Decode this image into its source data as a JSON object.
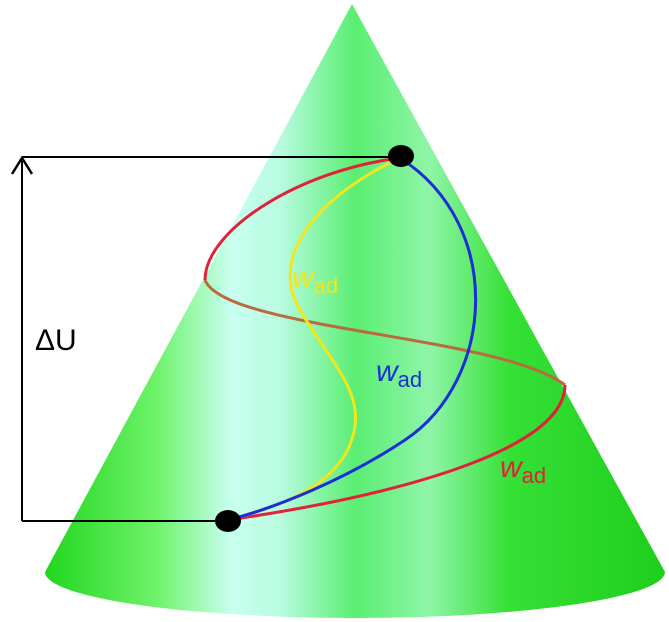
{
  "energy_label": "ΔU",
  "paths": [
    {
      "symbol": "w",
      "subscript": "ad",
      "color": "#f2e61c"
    },
    {
      "symbol": "w",
      "subscript": "ad",
      "color": "#1a2fd6"
    },
    {
      "symbol": "w",
      "subscript": "ad",
      "color": "#e0213a"
    }
  ]
}
